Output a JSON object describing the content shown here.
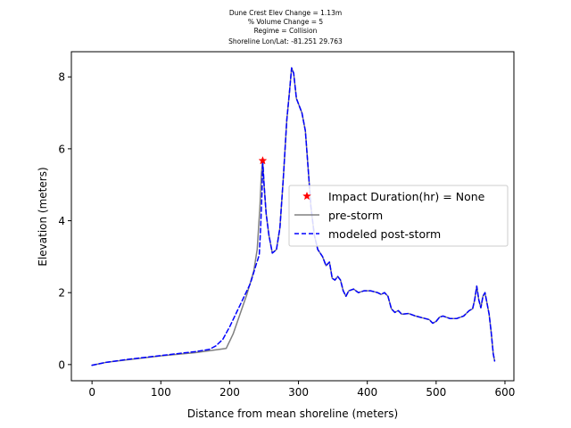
{
  "chart_data": {
    "type": "line",
    "title_lines": [
      "Dune Crest Elev Change = 1.13m",
      "% Volume Change = 5",
      "Regime = Collision",
      "Shoreline Lon/Lat: -81.251 29.763"
    ],
    "xlabel": "Distance from mean shoreline (meters)",
    "ylabel": "Elevation (meters)",
    "xlim": [
      -30,
      613
    ],
    "ylim": [
      -0.45,
      8.7
    ],
    "x_ticks": [
      0,
      100,
      200,
      300,
      400,
      500,
      600
    ],
    "y_ticks": [
      0,
      2,
      4,
      6,
      8
    ],
    "grid": false,
    "legend_position": "center-right",
    "series": [
      {
        "name": "pre-storm",
        "style": "solid",
        "color": "#808080",
        "points": [
          [
            0,
            -0.02
          ],
          [
            20,
            0.06
          ],
          [
            50,
            0.13
          ],
          [
            100,
            0.24
          ],
          [
            150,
            0.33
          ],
          [
            195,
            0.45
          ],
          [
            205,
            0.85
          ],
          [
            215,
            1.4
          ],
          [
            225,
            1.95
          ],
          [
            235,
            2.6
          ],
          [
            240,
            3.2
          ],
          [
            244,
            4.4
          ],
          [
            246,
            5.3
          ],
          [
            248,
            5.67
          ],
          [
            250,
            5.0
          ],
          [
            253,
            4.2
          ],
          [
            257,
            3.6
          ],
          [
            262,
            3.1
          ],
          [
            268,
            3.2
          ],
          [
            273,
            3.8
          ],
          [
            278,
            5.2
          ],
          [
            283,
            6.8
          ],
          [
            287,
            7.6
          ],
          [
            290,
            8.25
          ],
          [
            293,
            8.1
          ],
          [
            297,
            7.4
          ],
          [
            305,
            7.0
          ],
          [
            310,
            6.5
          ],
          [
            315,
            5.2
          ],
          [
            318,
            4.4
          ],
          [
            323,
            3.6
          ],
          [
            328,
            3.2
          ],
          [
            335,
            3.0
          ],
          [
            340,
            2.75
          ],
          [
            345,
            2.85
          ],
          [
            349,
            2.4
          ],
          [
            353,
            2.35
          ],
          [
            357,
            2.45
          ],
          [
            361,
            2.35
          ],
          [
            365,
            2.05
          ],
          [
            369,
            1.9
          ],
          [
            373,
            2.05
          ],
          [
            380,
            2.1
          ],
          [
            387,
            2.0
          ],
          [
            395,
            2.05
          ],
          [
            405,
            2.05
          ],
          [
            415,
            2.0
          ],
          [
            420,
            1.95
          ],
          [
            425,
            2.0
          ],
          [
            430,
            1.9
          ],
          [
            435,
            1.55
          ],
          [
            440,
            1.45
          ],
          [
            445,
            1.5
          ],
          [
            450,
            1.4
          ],
          [
            460,
            1.42
          ],
          [
            470,
            1.35
          ],
          [
            480,
            1.3
          ],
          [
            490,
            1.25
          ],
          [
            495,
            1.15
          ],
          [
            500,
            1.2
          ],
          [
            505,
            1.32
          ],
          [
            510,
            1.35
          ],
          [
            520,
            1.28
          ],
          [
            530,
            1.28
          ],
          [
            540,
            1.35
          ],
          [
            548,
            1.5
          ],
          [
            553,
            1.55
          ],
          [
            556,
            1.8
          ],
          [
            559,
            2.18
          ],
          [
            562,
            1.8
          ],
          [
            565,
            1.58
          ],
          [
            568,
            1.9
          ],
          [
            571,
            2.0
          ],
          [
            574,
            1.7
          ],
          [
            577,
            1.4
          ],
          [
            580,
            0.9
          ],
          [
            583,
            0.3
          ],
          [
            585,
            0.1
          ]
        ]
      },
      {
        "name": "modeled post-storm",
        "style": "dashed",
        "color": "#0000ff",
        "points": [
          [
            0,
            -0.02
          ],
          [
            20,
            0.06
          ],
          [
            50,
            0.14
          ],
          [
            100,
            0.25
          ],
          [
            150,
            0.36
          ],
          [
            170,
            0.42
          ],
          [
            180,
            0.52
          ],
          [
            190,
            0.7
          ],
          [
            200,
            1.05
          ],
          [
            210,
            1.45
          ],
          [
            220,
            1.85
          ],
          [
            230,
            2.25
          ],
          [
            238,
            2.75
          ],
          [
            243,
            3.05
          ],
          [
            245,
            3.8
          ],
          [
            247,
            4.8
          ],
          [
            248,
            5.67
          ],
          [
            250,
            5.0
          ],
          [
            253,
            4.2
          ],
          [
            257,
            3.6
          ],
          [
            262,
            3.1
          ],
          [
            268,
            3.2
          ],
          [
            273,
            3.8
          ],
          [
            278,
            5.2
          ],
          [
            283,
            6.8
          ],
          [
            287,
            7.6
          ],
          [
            290,
            8.25
          ],
          [
            293,
            8.1
          ],
          [
            297,
            7.4
          ],
          [
            305,
            7.0
          ],
          [
            310,
            6.5
          ],
          [
            315,
            5.2
          ],
          [
            318,
            4.4
          ],
          [
            323,
            3.6
          ],
          [
            328,
            3.2
          ],
          [
            335,
            3.0
          ],
          [
            340,
            2.75
          ],
          [
            345,
            2.85
          ],
          [
            349,
            2.4
          ],
          [
            353,
            2.35
          ],
          [
            357,
            2.45
          ],
          [
            361,
            2.35
          ],
          [
            365,
            2.05
          ],
          [
            369,
            1.9
          ],
          [
            373,
            2.05
          ],
          [
            380,
            2.1
          ],
          [
            387,
            2.0
          ],
          [
            395,
            2.05
          ],
          [
            405,
            2.05
          ],
          [
            415,
            2.0
          ],
          [
            420,
            1.95
          ],
          [
            425,
            2.0
          ],
          [
            430,
            1.9
          ],
          [
            435,
            1.55
          ],
          [
            440,
            1.45
          ],
          [
            445,
            1.5
          ],
          [
            450,
            1.4
          ],
          [
            460,
            1.42
          ],
          [
            470,
            1.35
          ],
          [
            480,
            1.3
          ],
          [
            490,
            1.25
          ],
          [
            495,
            1.15
          ],
          [
            500,
            1.2
          ],
          [
            505,
            1.32
          ],
          [
            510,
            1.35
          ],
          [
            520,
            1.28
          ],
          [
            530,
            1.28
          ],
          [
            540,
            1.35
          ],
          [
            548,
            1.5
          ],
          [
            553,
            1.55
          ],
          [
            556,
            1.8
          ],
          [
            559,
            2.18
          ],
          [
            562,
            1.8
          ],
          [
            565,
            1.58
          ],
          [
            568,
            1.9
          ],
          [
            571,
            2.0
          ],
          [
            574,
            1.7
          ],
          [
            577,
            1.4
          ],
          [
            580,
            0.9
          ],
          [
            583,
            0.3
          ],
          [
            585,
            0.1
          ]
        ]
      }
    ],
    "markers": [
      {
        "name": "Impact Duration(hr) = None",
        "x": 248,
        "y": 5.67,
        "shape": "star",
        "color": "#ff0000"
      }
    ]
  }
}
